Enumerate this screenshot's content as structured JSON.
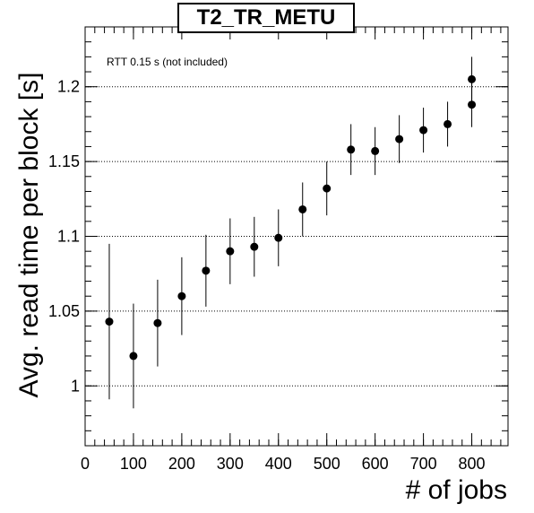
{
  "chart_data": {
    "type": "scatter",
    "title": "T2_TR_METU",
    "xlabel": "# of jobs",
    "ylabel": "Avg. read time per block [s]",
    "annotation": "RTT 0.15 s (not included)",
    "xlim": [
      0,
      875
    ],
    "ylim": [
      0.96,
      1.24
    ],
    "x_ticks": [
      0,
      100,
      200,
      300,
      400,
      500,
      600,
      700,
      800
    ],
    "x_tick_labels": [
      "0",
      "100",
      "200",
      "300",
      "400",
      "500",
      "600",
      "700",
      "800"
    ],
    "y_ticks": [
      1.0,
      1.05,
      1.1,
      1.15,
      1.2
    ],
    "y_tick_labels": [
      "1",
      "1.05",
      "1.1",
      "1.15",
      "1.2"
    ],
    "grid": "y-dotted",
    "series": [
      {
        "marker": "circle",
        "color": "#000000",
        "points": [
          {
            "x": 50,
            "y": 1.043,
            "err": 0.052
          },
          {
            "x": 100,
            "y": 1.02,
            "err": 0.035
          },
          {
            "x": 150,
            "y": 1.042,
            "err": 0.029
          },
          {
            "x": 200,
            "y": 1.06,
            "err": 0.026
          },
          {
            "x": 250,
            "y": 1.077,
            "err": 0.024
          },
          {
            "x": 300,
            "y": 1.09,
            "err": 0.022
          },
          {
            "x": 350,
            "y": 1.093,
            "err": 0.02
          },
          {
            "x": 400,
            "y": 1.099,
            "err": 0.019
          },
          {
            "x": 450,
            "y": 1.118,
            "err": 0.018
          },
          {
            "x": 500,
            "y": 1.132,
            "err": 0.018
          },
          {
            "x": 550,
            "y": 1.158,
            "err": 0.017
          },
          {
            "x": 600,
            "y": 1.157,
            "err": 0.016
          },
          {
            "x": 650,
            "y": 1.165,
            "err": 0.016
          },
          {
            "x": 700,
            "y": 1.171,
            "err": 0.015
          },
          {
            "x": 750,
            "y": 1.175,
            "err": 0.015
          },
          {
            "x": 800,
            "y": 1.188,
            "err": 0.015
          },
          {
            "x": 800,
            "y": 1.205,
            "err": 0.015
          }
        ]
      }
    ]
  }
}
